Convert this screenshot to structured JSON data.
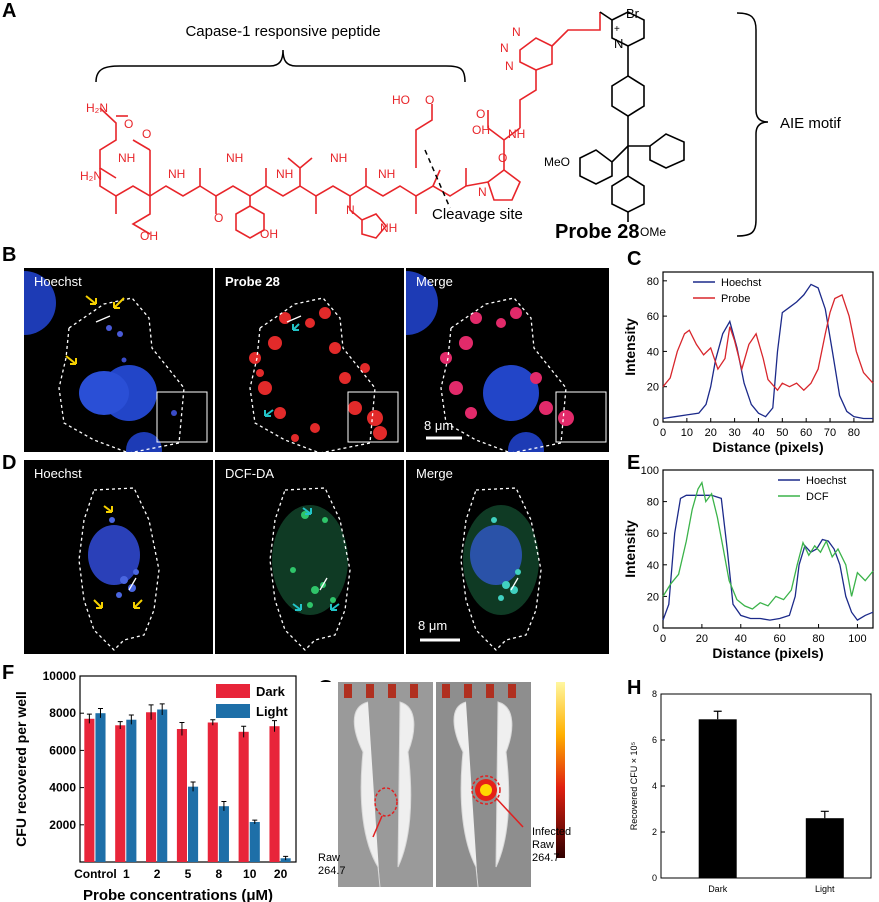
{
  "panels": {
    "A": "A",
    "B": "B",
    "C": "C",
    "D": "D",
    "E": "E",
    "F": "F",
    "G": "G",
    "H": "H"
  },
  "panelA": {
    "peptide_label": "Capase-1 responsive peptide",
    "aie_label": "AIE motif",
    "cleavage_label": "Cleavage site",
    "probe_label": "Probe 28",
    "br": "Br",
    "plus": "+",
    "chem": {
      "h2n_top": "H₂N",
      "h2n": "H₂N",
      "nh": "NH",
      "n": "N",
      "o": "O",
      "oh": "OH",
      "ho": "HO",
      "meo": "MeO",
      "ome": "OMe",
      "h": "H"
    }
  },
  "panelB": {
    "titles": [
      "Hoechst",
      "Probe 28",
      "Merge"
    ],
    "scale_bar": "8 μm"
  },
  "panelD": {
    "titles": [
      "Hoechst",
      "DCF-DA",
      "Merge"
    ],
    "scale_bar": "8 μm"
  },
  "colors": {
    "peptide_red": "#e8252a",
    "hoechst_blue": "#1c2a8a",
    "probe_red": "#d8262c",
    "dcf_green": "#3bb34a",
    "bar_dark": "#e8253a",
    "bar_light": "#1e6fa8",
    "arrow_yellow": "#f5d000",
    "arrow_cyan": "#22c4c8"
  },
  "chart_data": [
    {
      "id": "C",
      "type": "line",
      "xlabel": "Distance (pixels)",
      "ylabel": "Intensity",
      "xlim": [
        0,
        88
      ],
      "ylim": [
        0,
        85
      ],
      "xticks": [
        0,
        10,
        20,
        30,
        40,
        50,
        60,
        70,
        80
      ],
      "yticks": [
        0,
        20,
        40,
        60,
        80
      ],
      "legend_position": "top-left",
      "series": [
        {
          "name": "Hoechst",
          "color": "#1c2a8a",
          "x": [
            0,
            5,
            10,
            15,
            18,
            20,
            22,
            25,
            28,
            31,
            34,
            37,
            40,
            43,
            46,
            48,
            50,
            53,
            56,
            59,
            62,
            65,
            68,
            71,
            74,
            77,
            80,
            84,
            88
          ],
          "y": [
            2,
            3,
            4,
            5,
            10,
            20,
            35,
            50,
            57,
            42,
            22,
            10,
            5,
            3,
            8,
            40,
            62,
            65,
            68,
            72,
            78,
            76,
            64,
            40,
            15,
            6,
            3,
            2,
            2
          ]
        },
        {
          "name": "Probe",
          "color": "#d8262c",
          "x": [
            0,
            3,
            6,
            9,
            11,
            14,
            17,
            20,
            23,
            26,
            28,
            30,
            33,
            36,
            39,
            42,
            44,
            46,
            48,
            50,
            53,
            56,
            59,
            62,
            65,
            68,
            70,
            72,
            75,
            78,
            81,
            84,
            88
          ],
          "y": [
            20,
            25,
            40,
            50,
            52,
            44,
            38,
            42,
            30,
            36,
            54,
            46,
            30,
            44,
            50,
            36,
            24,
            21,
            18,
            22,
            20,
            22,
            18,
            22,
            30,
            50,
            62,
            70,
            72,
            60,
            40,
            28,
            22
          ]
        }
      ]
    },
    {
      "id": "E",
      "type": "line",
      "xlabel": "Distance (pixels)",
      "ylabel": "Intensity",
      "xlim": [
        0,
        108
      ],
      "ylim": [
        0,
        100
      ],
      "xticks": [
        0,
        20,
        40,
        60,
        80,
        100
      ],
      "yticks": [
        0,
        20,
        40,
        60,
        80,
        100
      ],
      "legend_position": "top-right",
      "series": [
        {
          "name": "Hoechst",
          "color": "#1c2a8a",
          "x": [
            0,
            3,
            6,
            9,
            12,
            16,
            20,
            25,
            30,
            33,
            36,
            40,
            45,
            50,
            55,
            60,
            65,
            68,
            70,
            73,
            76,
            79,
            82,
            85,
            88,
            91,
            94,
            97,
            100,
            104,
            108
          ],
          "y": [
            5,
            15,
            60,
            82,
            84,
            84,
            84,
            84,
            82,
            50,
            15,
            8,
            6,
            6,
            5,
            6,
            8,
            20,
            40,
            52,
            48,
            50,
            56,
            55,
            50,
            40,
            20,
            10,
            5,
            8,
            10
          ]
        },
        {
          "name": "DCF",
          "color": "#3bb34a",
          "x": [
            0,
            4,
            8,
            12,
            15,
            18,
            20,
            22,
            25,
            28,
            31,
            34,
            38,
            42,
            46,
            50,
            54,
            58,
            62,
            66,
            69,
            72,
            75,
            78,
            81,
            84,
            87,
            90,
            94,
            97,
            100,
            104,
            108
          ],
          "y": [
            20,
            28,
            34,
            55,
            75,
            88,
            92,
            80,
            85,
            70,
            50,
            30,
            18,
            14,
            12,
            16,
            14,
            20,
            18,
            24,
            40,
            54,
            46,
            52,
            48,
            55,
            45,
            50,
            40,
            20,
            35,
            30,
            36
          ]
        }
      ]
    },
    {
      "id": "F",
      "type": "bar",
      "xlabel": "Probe concentrations (μM)",
      "ylabel": "CFU recovered per well",
      "categories": [
        "Control",
        "1",
        "2",
        "5",
        "8",
        "10",
        "20"
      ],
      "ylim": [
        0,
        10000
      ],
      "yticks": [
        2000,
        4000,
        6000,
        8000,
        10000
      ],
      "legend_position": "top-right",
      "series": [
        {
          "name": "Dark",
          "color": "#e8253a",
          "values": [
            7700,
            7350,
            8050,
            7150,
            7500,
            7000,
            7300
          ],
          "errors": [
            250,
            200,
            400,
            350,
            150,
            300,
            300
          ]
        },
        {
          "name": "Light",
          "color": "#1e6fa8",
          "values": [
            8000,
            7650,
            8200,
            4050,
            3000,
            2150,
            200
          ],
          "errors": [
            250,
            250,
            300,
            250,
            250,
            100,
            100
          ]
        }
      ]
    },
    {
      "id": "H",
      "type": "bar",
      "ylabel": "Recovered CFU × 10⁵",
      "categories": [
        "Dark",
        "Light"
      ],
      "values": [
        6.9,
        2.6
      ],
      "errors": [
        0.35,
        0.3
      ],
      "ylim": [
        0,
        8
      ],
      "yticks": [
        0,
        2,
        4,
        6,
        8
      ]
    }
  ],
  "panelG": {
    "label_left_1": "Raw",
    "label_left_2": "264.7",
    "label_right_1": "Infected",
    "label_right_2": "Raw",
    "label_right_3": "264.7"
  }
}
